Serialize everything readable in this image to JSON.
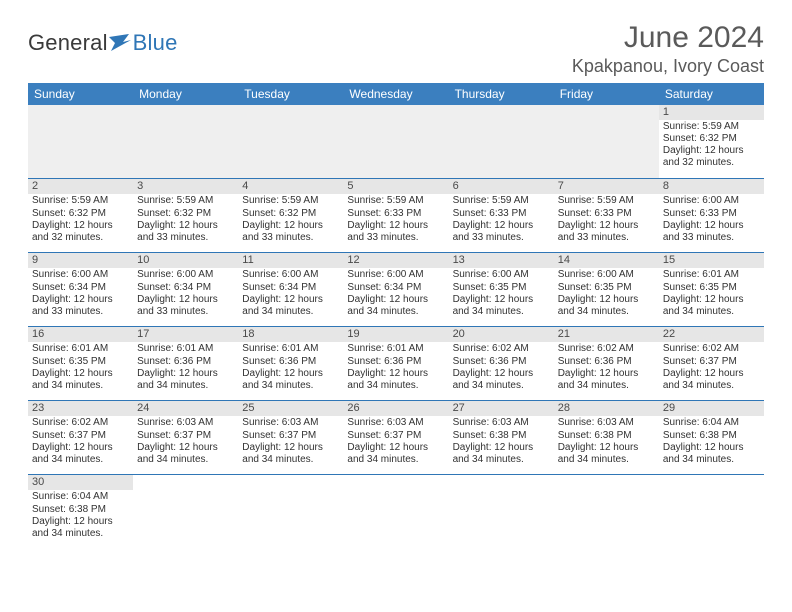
{
  "brand": {
    "part1": "General",
    "part2": "Blue"
  },
  "title": "June 2024",
  "location": "Kpakpanou, Ivory Coast",
  "colors": {
    "header_bg": "#3b7fbf",
    "header_text": "#ffffff",
    "rule": "#2f76b6",
    "daynum_bg": "#e6e6e6",
    "text": "#323232",
    "title_text": "#5a5a5a",
    "logo_accent": "#2f76b6"
  },
  "weekdays": [
    "Sunday",
    "Monday",
    "Tuesday",
    "Wednesday",
    "Thursday",
    "Friday",
    "Saturday"
  ],
  "layout": {
    "first_weekday_index": 6,
    "days_in_month": 30
  },
  "labels": {
    "sunrise": "Sunrise:",
    "sunset": "Sunset:",
    "daylight": "Daylight:"
  },
  "days": {
    "1": {
      "sunrise": "5:59 AM",
      "sunset": "6:32 PM",
      "daylight": "12 hours and 32 minutes."
    },
    "2": {
      "sunrise": "5:59 AM",
      "sunset": "6:32 PM",
      "daylight": "12 hours and 32 minutes."
    },
    "3": {
      "sunrise": "5:59 AM",
      "sunset": "6:32 PM",
      "daylight": "12 hours and 33 minutes."
    },
    "4": {
      "sunrise": "5:59 AM",
      "sunset": "6:32 PM",
      "daylight": "12 hours and 33 minutes."
    },
    "5": {
      "sunrise": "5:59 AM",
      "sunset": "6:33 PM",
      "daylight": "12 hours and 33 minutes."
    },
    "6": {
      "sunrise": "5:59 AM",
      "sunset": "6:33 PM",
      "daylight": "12 hours and 33 minutes."
    },
    "7": {
      "sunrise": "5:59 AM",
      "sunset": "6:33 PM",
      "daylight": "12 hours and 33 minutes."
    },
    "8": {
      "sunrise": "6:00 AM",
      "sunset": "6:33 PM",
      "daylight": "12 hours and 33 minutes."
    },
    "9": {
      "sunrise": "6:00 AM",
      "sunset": "6:34 PM",
      "daylight": "12 hours and 33 minutes."
    },
    "10": {
      "sunrise": "6:00 AM",
      "sunset": "6:34 PM",
      "daylight": "12 hours and 33 minutes."
    },
    "11": {
      "sunrise": "6:00 AM",
      "sunset": "6:34 PM",
      "daylight": "12 hours and 34 minutes."
    },
    "12": {
      "sunrise": "6:00 AM",
      "sunset": "6:34 PM",
      "daylight": "12 hours and 34 minutes."
    },
    "13": {
      "sunrise": "6:00 AM",
      "sunset": "6:35 PM",
      "daylight": "12 hours and 34 minutes."
    },
    "14": {
      "sunrise": "6:00 AM",
      "sunset": "6:35 PM",
      "daylight": "12 hours and 34 minutes."
    },
    "15": {
      "sunrise": "6:01 AM",
      "sunset": "6:35 PM",
      "daylight": "12 hours and 34 minutes."
    },
    "16": {
      "sunrise": "6:01 AM",
      "sunset": "6:35 PM",
      "daylight": "12 hours and 34 minutes."
    },
    "17": {
      "sunrise": "6:01 AM",
      "sunset": "6:36 PM",
      "daylight": "12 hours and 34 minutes."
    },
    "18": {
      "sunrise": "6:01 AM",
      "sunset": "6:36 PM",
      "daylight": "12 hours and 34 minutes."
    },
    "19": {
      "sunrise": "6:01 AM",
      "sunset": "6:36 PM",
      "daylight": "12 hours and 34 minutes."
    },
    "20": {
      "sunrise": "6:02 AM",
      "sunset": "6:36 PM",
      "daylight": "12 hours and 34 minutes."
    },
    "21": {
      "sunrise": "6:02 AM",
      "sunset": "6:36 PM",
      "daylight": "12 hours and 34 minutes."
    },
    "22": {
      "sunrise": "6:02 AM",
      "sunset": "6:37 PM",
      "daylight": "12 hours and 34 minutes."
    },
    "23": {
      "sunrise": "6:02 AM",
      "sunset": "6:37 PM",
      "daylight": "12 hours and 34 minutes."
    },
    "24": {
      "sunrise": "6:03 AM",
      "sunset": "6:37 PM",
      "daylight": "12 hours and 34 minutes."
    },
    "25": {
      "sunrise": "6:03 AM",
      "sunset": "6:37 PM",
      "daylight": "12 hours and 34 minutes."
    },
    "26": {
      "sunrise": "6:03 AM",
      "sunset": "6:37 PM",
      "daylight": "12 hours and 34 minutes."
    },
    "27": {
      "sunrise": "6:03 AM",
      "sunset": "6:38 PM",
      "daylight": "12 hours and 34 minutes."
    },
    "28": {
      "sunrise": "6:03 AM",
      "sunset": "6:38 PM",
      "daylight": "12 hours and 34 minutes."
    },
    "29": {
      "sunrise": "6:04 AM",
      "sunset": "6:38 PM",
      "daylight": "12 hours and 34 minutes."
    },
    "30": {
      "sunrise": "6:04 AM",
      "sunset": "6:38 PM",
      "daylight": "12 hours and 34 minutes."
    }
  }
}
